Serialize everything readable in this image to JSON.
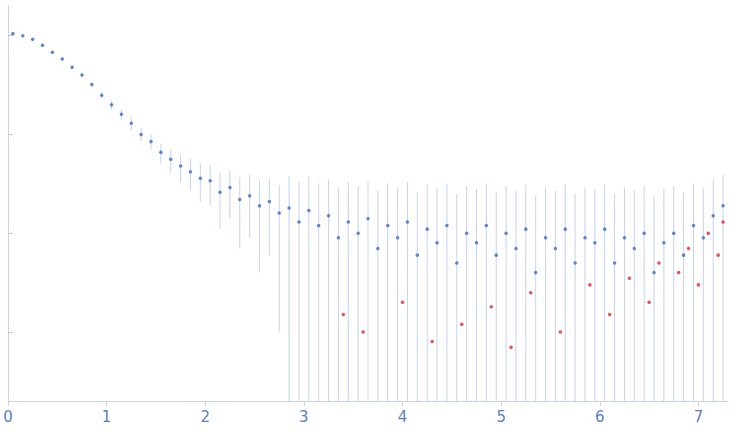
{
  "chart_data": {
    "type": "scatter",
    "log": "y",
    "grid": false,
    "tick_labels": "x",
    "xlim": [
      0,
      7.3
    ],
    "xticks": [
      0,
      1,
      2,
      3,
      4,
      5,
      6,
      7
    ],
    "ylim": [
      0.02,
      200
    ],
    "yticks": [
      0.1,
      1,
      10,
      100
    ],
    "series": [
      {
        "color": "#3a6cc6",
        "marker": "circle",
        "x": [
          0.05,
          0.15,
          0.25,
          0.35,
          0.45,
          0.55,
          0.65,
          0.75,
          0.85,
          0.95,
          1.05,
          1.15,
          1.25,
          1.35,
          1.45,
          1.55,
          1.65,
          1.75,
          1.85,
          1.95,
          2.05,
          2.15,
          2.25,
          2.35,
          2.45,
          2.55,
          2.65,
          2.75,
          2.85,
          2.95,
          3.05,
          3.15,
          3.25,
          3.35,
          3.45,
          3.55,
          3.65,
          3.75,
          3.85,
          3.95,
          4.05,
          4.15,
          4.25,
          4.35,
          4.45,
          4.55,
          4.65,
          4.75,
          4.85,
          4.95,
          5.05,
          5.15,
          5.25,
          5.35,
          5.45,
          5.55,
          5.65,
          5.75,
          5.85,
          5.95,
          6.05,
          6.15,
          6.25,
          6.35,
          6.45,
          6.55,
          6.65,
          6.75,
          6.85,
          6.95,
          7.05,
          7.15,
          7.25
        ],
        "values": [
          105,
          100,
          92,
          80,
          68,
          58,
          48,
          40,
          32,
          25,
          20,
          16,
          13,
          10,
          8.5,
          6.6,
          5.6,
          4.8,
          4.2,
          3.6,
          3.4,
          2.6,
          2.9,
          2.2,
          2.4,
          1.9,
          2.1,
          1.6,
          1.8,
          1.3,
          1.7,
          1.2,
          1.5,
          0.9,
          1.3,
          1.0,
          1.4,
          0.7,
          1.2,
          0.9,
          1.3,
          0.6,
          1.1,
          0.8,
          1.2,
          0.5,
          1.0,
          0.8,
          1.2,
          0.6,
          1.0,
          0.7,
          1.1,
          0.4,
          0.9,
          0.7,
          1.1,
          0.5,
          0.9,
          0.8,
          1.1,
          0.5,
          0.9,
          0.7,
          1.0,
          0.4,
          0.8,
          1.0,
          0.6,
          1.2,
          0.9,
          1.5,
          1.9
        ],
        "errors": [
          2,
          2,
          2,
          2,
          2,
          2,
          2,
          2,
          2,
          2,
          2,
          2,
          2,
          1.5,
          1.5,
          1.5,
          1.5,
          1.5,
          1.5,
          1.5,
          1.5,
          1.5,
          1.5,
          1.5,
          1.5,
          1.5,
          1.5,
          1.5,
          2,
          2,
          2,
          2,
          2,
          2,
          2,
          2,
          2,
          2,
          2,
          2,
          2,
          2,
          2,
          2,
          2,
          2,
          2,
          2,
          2,
          2,
          2,
          2,
          2,
          2,
          2,
          2,
          2,
          2,
          2,
          2,
          2,
          2,
          2,
          2,
          2,
          2,
          2,
          2,
          2,
          2,
          2,
          2,
          2
        ]
      },
      {
        "color": "#e3262a",
        "marker": "circle",
        "x": [
          3.4,
          3.6,
          4.0,
          4.3,
          4.6,
          4.9,
          5.1,
          5.3,
          5.6,
          5.9,
          6.1,
          6.3,
          6.5,
          6.6,
          6.8,
          6.9,
          7.0,
          7.1,
          7.2,
          7.25
        ],
        "values": [
          0.15,
          0.1,
          0.2,
          0.08,
          0.12,
          0.18,
          0.07,
          0.25,
          0.1,
          0.3,
          0.15,
          0.35,
          0.2,
          0.5,
          0.4,
          0.7,
          0.3,
          1.0,
          0.6,
          1.3
        ]
      }
    ]
  }
}
